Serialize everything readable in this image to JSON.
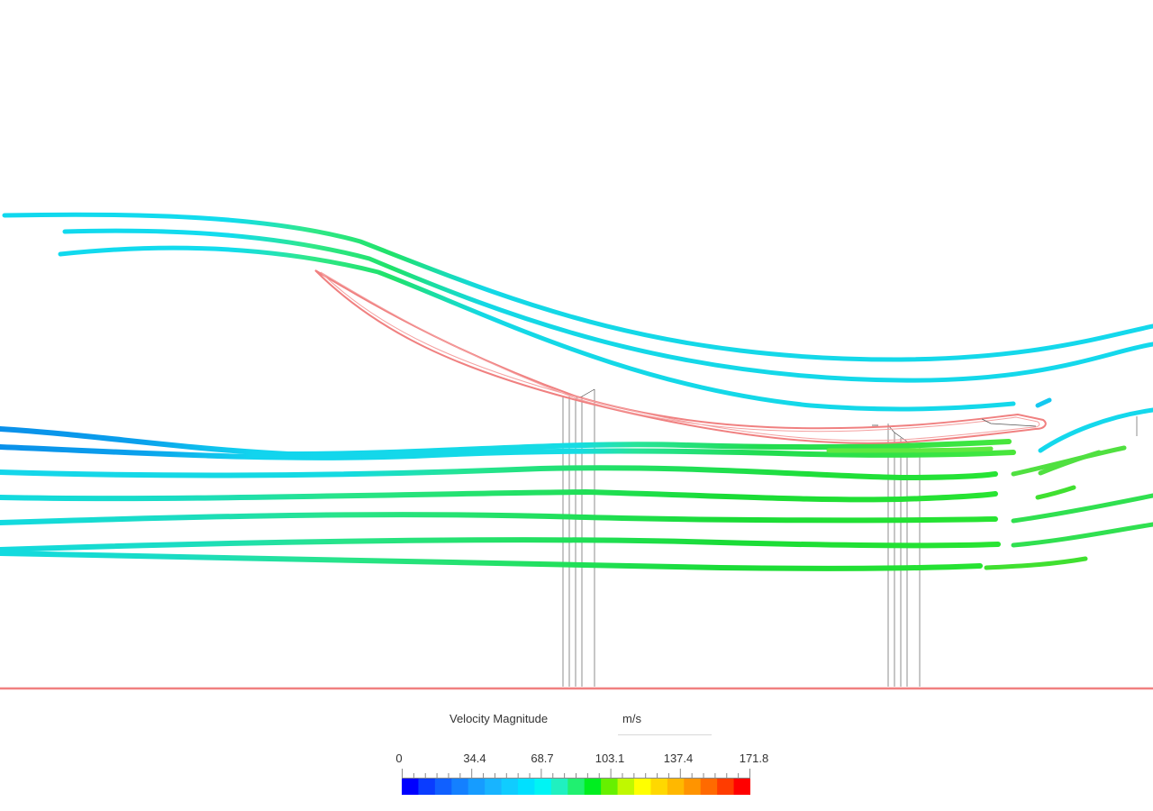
{
  "scene": {
    "view": "2D streamline plot around a wing section",
    "colors": {
      "background": "#ffffff",
      "outline": "#f08080",
      "guide_lines": "#444444"
    }
  },
  "legend": {
    "title": "Velocity Magnitude",
    "unit": "m/s",
    "ticks": [
      "0",
      "34.4",
      "68.7",
      "103.1",
      "137.4",
      "171.8"
    ],
    "range": [
      0,
      171.8
    ],
    "colormap": [
      "#0000ff",
      "#0a3cff",
      "#1060ff",
      "#1480ff",
      "#169cff",
      "#18b4ff",
      "#10ccff",
      "#00e0ff",
      "#00f4f4",
      "#20f0c0",
      "#20f070",
      "#00ee20",
      "#66f000",
      "#c0f800",
      "#ffff00",
      "#ffd800",
      "#ffb800",
      "#ff9400",
      "#ff6a00",
      "#ff3c00",
      "#ff0000"
    ]
  }
}
